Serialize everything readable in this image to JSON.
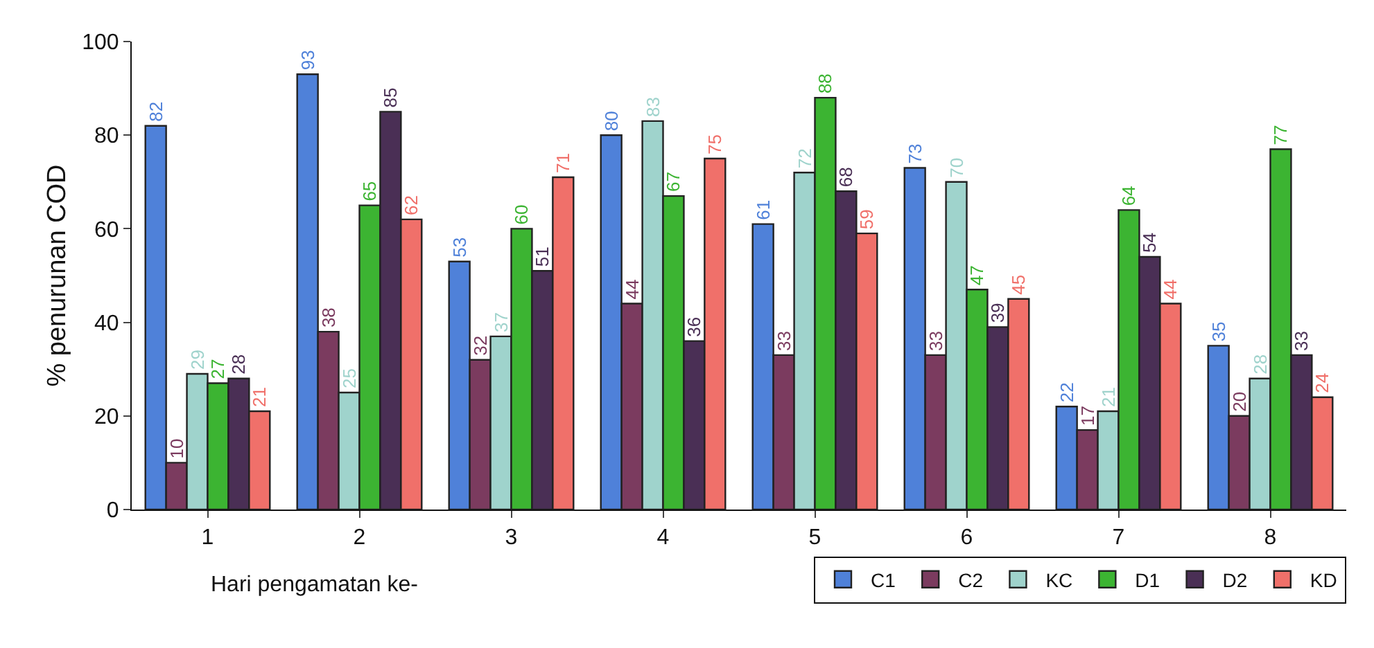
{
  "chart_data": {
    "type": "bar",
    "xlabel": "Hari pengamatan ke-",
    "ylabel": "% penurunan COD",
    "categories": [
      "1",
      "2",
      "3",
      "4",
      "5",
      "6",
      "7",
      "8"
    ],
    "series": [
      {
        "name": "C1",
        "color": "#4f81d9",
        "values": [
          82,
          93,
          53,
          80,
          61,
          73,
          22,
          35
        ]
      },
      {
        "name": "C2",
        "color": "#7b3b5f",
        "values": [
          10,
          38,
          32,
          44,
          33,
          33,
          17,
          20
        ]
      },
      {
        "name": "KC",
        "color": "#9fd3cc",
        "values": [
          29,
          25,
          37,
          83,
          72,
          70,
          21,
          28
        ]
      },
      {
        "name": "D1",
        "color": "#3cb432",
        "values": [
          27,
          65,
          60,
          67,
          88,
          47,
          64,
          77
        ]
      },
      {
        "name": "D2",
        "color": "#4a2f55",
        "values": [
          28,
          85,
          51,
          36,
          68,
          39,
          54,
          33
        ]
      },
      {
        "name": "KD",
        "color": "#f0706a",
        "values": [
          21,
          62,
          71,
          75,
          59,
          45,
          44,
          24
        ]
      }
    ],
    "ylim": [
      0,
      100
    ],
    "yticks": [
      0,
      20,
      40,
      60,
      80,
      100
    ],
    "grid": false,
    "legend": "bottom right",
    "data_labels": true
  }
}
